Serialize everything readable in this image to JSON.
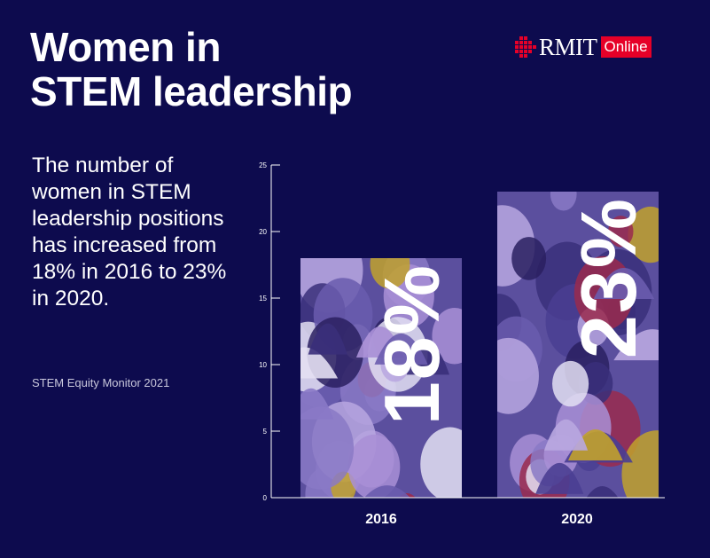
{
  "page": {
    "title_line1": "Women in",
    "title_line2": "STEM leadership",
    "description": "The number of women in STEM leadership positions has increased from 18% in 2016 to 23% in 2020.",
    "source": "STEM Equity Monitor 2021"
  },
  "logo": {
    "wordmark": "RMIT",
    "badge": "Online",
    "brand_color": "#e60028"
  },
  "colors": {
    "background": "#0d0b4e",
    "axis": "#ffffff",
    "bar_base": "#5b4f9e"
  },
  "chart_data": {
    "type": "bar",
    "categories": [
      "2016",
      "2020"
    ],
    "values": [
      18,
      23
    ],
    "value_labels": [
      "18%",
      "23%"
    ],
    "ylim": [
      0,
      25
    ],
    "yticks": [
      0,
      5,
      10,
      15,
      20,
      25
    ],
    "grid": false,
    "legend": "none",
    "title": "",
    "xlabel": "",
    "ylabel": ""
  }
}
